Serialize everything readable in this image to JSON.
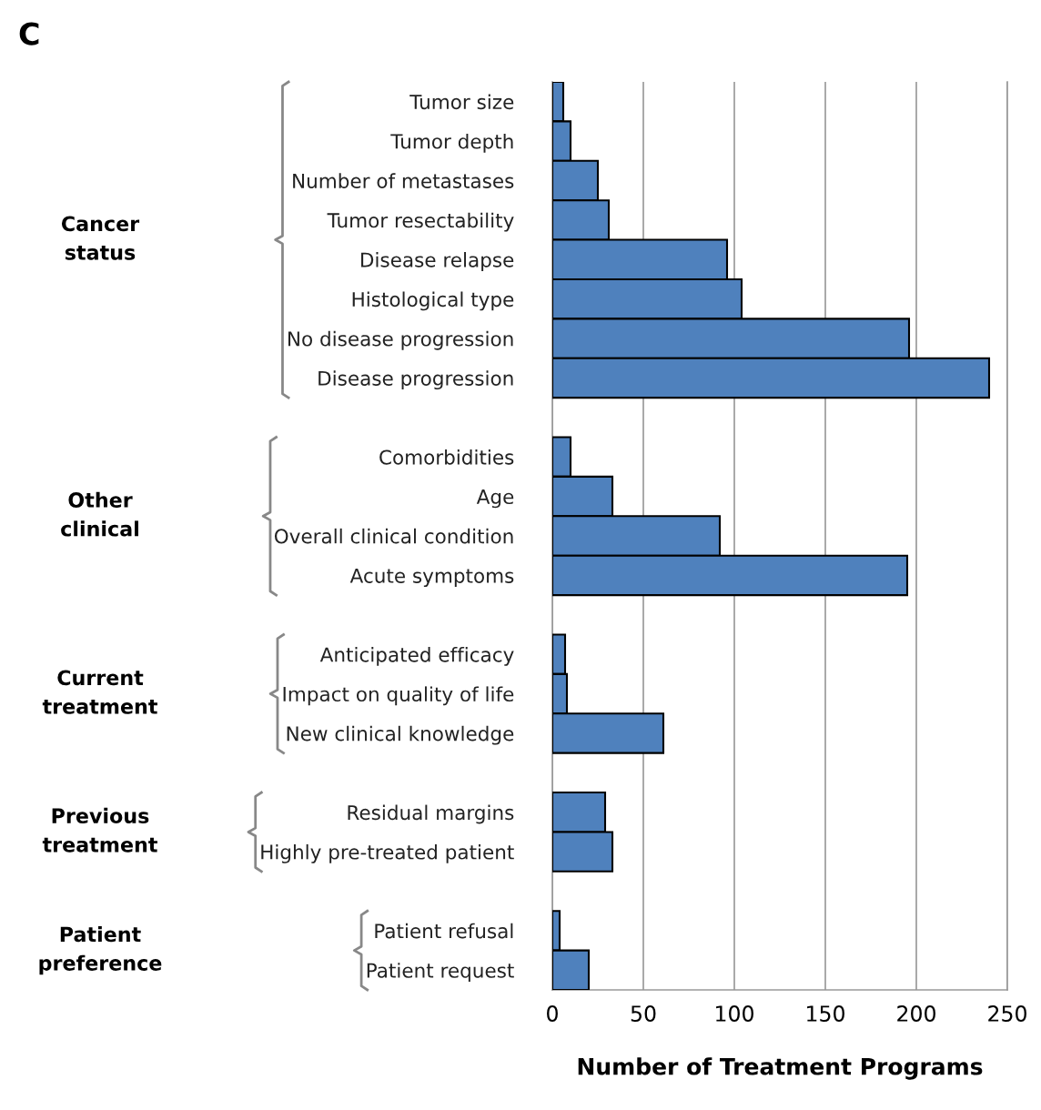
{
  "chart_data": {
    "type": "bar",
    "orientation": "horizontal",
    "title": "C",
    "xlabel": "Number of Treatment Programs",
    "categories": [
      "Tumor size",
      "Tumor depth",
      "Number of metastases",
      "Tumor resectability",
      "Disease relapse",
      "Histological type",
      "No disease progression",
      "Disease progression",
      null,
      "Comorbidities",
      "Age",
      "Overall clinical condition",
      "Acute symptoms",
      null,
      "Anticipated efficacy",
      "Impact on quality of life",
      "New clinical knowledge",
      null,
      "Residual margins",
      "Highly pre-treated patient",
      null,
      "Patient refusal",
      "Patient request"
    ],
    "values": [
      6,
      10,
      25,
      31,
      96,
      104,
      196,
      240,
      null,
      10,
      33,
      92,
      195,
      null,
      7,
      8,
      61,
      null,
      29,
      33,
      null,
      4,
      20
    ],
    "color": "#4f81bd",
    "annotations": [
      "Cancer status",
      "Other clinical",
      "Current treatment",
      "Previous treatment",
      "Patient preference"
    ],
    "xlim": [
      0,
      250
    ],
    "xticks": [
      0,
      50,
      100,
      150,
      200,
      250
    ],
    "grid": "x"
  }
}
